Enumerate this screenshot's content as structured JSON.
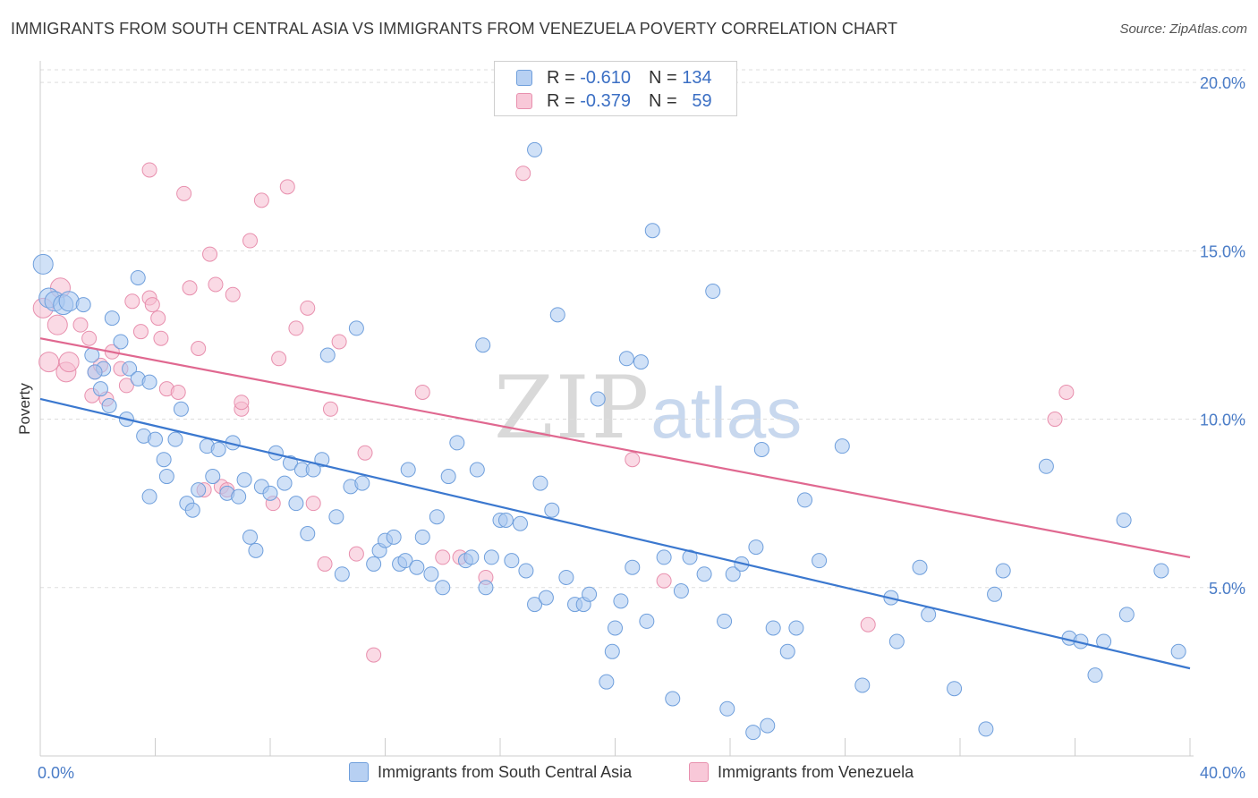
{
  "header": {
    "title": "IMMIGRANTS FROM SOUTH CENTRAL ASIA VS IMMIGRANTS FROM VENEZUELA POVERTY CORRELATION CHART",
    "source": "Source: ZipAtlas.com"
  },
  "watermark": {
    "zip": "ZIP",
    "atlas": "atlas"
  },
  "legend": {
    "rows": [
      {
        "r_label": "R =",
        "r_value": "-0.610",
        "n_label": "N =",
        "n_value": "134"
      },
      {
        "r_label": "R =",
        "r_value": "-0.379",
        "n_label": "N =",
        "n_value": "59"
      }
    ]
  },
  "colors": {
    "blue_fill": "#a9c8f0",
    "blue_stroke": "#6f9fdc",
    "blue_line": "#3b78cf",
    "pink_fill": "#f5bcd0",
    "pink_stroke": "#e890ae",
    "pink_line": "#e06890",
    "grid": "#dddddd"
  },
  "chart_data": {
    "type": "scatter",
    "title": "IMMIGRANTS FROM SOUTH CENTRAL ASIA VS IMMIGRANTS FROM VENEZUELA POVERTY CORRELATION CHART",
    "xlabel": "",
    "ylabel": "Poverty",
    "xlim": [
      0,
      40
    ],
    "ylim": [
      0,
      20.8
    ],
    "x_tick_labels": [
      "0.0%",
      "40.0%"
    ],
    "y_ticks": [
      5,
      10,
      15,
      20
    ],
    "y_tick_labels": [
      "5.0%",
      "10.0%",
      "15.0%",
      "20.0%"
    ],
    "grid": true,
    "legend_position": "top-center",
    "series": [
      {
        "name": "Immigrants from South Central Asia",
        "color": "blue",
        "trend": {
          "x": [
            0,
            40
          ],
          "y": [
            10.6,
            2.6
          ]
        },
        "points": [
          [
            0.1,
            14.6
          ],
          [
            0.3,
            13.6
          ],
          [
            0.5,
            13.5
          ],
          [
            0.8,
            13.4
          ],
          [
            1.0,
            13.5
          ],
          [
            1.5,
            13.4
          ],
          [
            1.8,
            11.9
          ],
          [
            2.1,
            10.9
          ],
          [
            2.2,
            11.5
          ],
          [
            1.9,
            11.4
          ],
          [
            2.5,
            13.0
          ],
          [
            2.8,
            12.3
          ],
          [
            3.1,
            11.5
          ],
          [
            2.4,
            10.4
          ],
          [
            3.0,
            10.0
          ],
          [
            3.4,
            11.2
          ],
          [
            3.8,
            11.1
          ],
          [
            3.4,
            14.2
          ],
          [
            3.6,
            9.5
          ],
          [
            4.0,
            9.4
          ],
          [
            4.3,
            8.8
          ],
          [
            4.4,
            8.3
          ],
          [
            3.8,
            7.7
          ],
          [
            4.7,
            9.4
          ],
          [
            4.9,
            10.3
          ],
          [
            5.1,
            7.5
          ],
          [
            5.3,
            7.3
          ],
          [
            5.5,
            7.9
          ],
          [
            5.8,
            9.2
          ],
          [
            6.0,
            8.3
          ],
          [
            6.2,
            9.1
          ],
          [
            6.5,
            7.8
          ],
          [
            6.7,
            9.3
          ],
          [
            6.9,
            7.7
          ],
          [
            7.1,
            8.2
          ],
          [
            7.3,
            6.5
          ],
          [
            7.5,
            6.1
          ],
          [
            7.7,
            8.0
          ],
          [
            8.0,
            7.8
          ],
          [
            8.2,
            9.0
          ],
          [
            8.5,
            8.1
          ],
          [
            8.7,
            8.7
          ],
          [
            8.9,
            7.5
          ],
          [
            9.1,
            8.5
          ],
          [
            9.3,
            6.6
          ],
          [
            9.5,
            8.5
          ],
          [
            9.8,
            8.8
          ],
          [
            10.0,
            11.9
          ],
          [
            10.3,
            7.1
          ],
          [
            10.5,
            5.4
          ],
          [
            10.8,
            8.0
          ],
          [
            11.0,
            12.7
          ],
          [
            11.2,
            8.1
          ],
          [
            11.6,
            5.7
          ],
          [
            11.8,
            6.1
          ],
          [
            12.0,
            6.4
          ],
          [
            12.3,
            6.5
          ],
          [
            12.5,
            5.7
          ],
          [
            12.8,
            8.5
          ],
          [
            12.7,
            5.8
          ],
          [
            13.1,
            5.6
          ],
          [
            13.3,
            6.5
          ],
          [
            13.6,
            5.4
          ],
          [
            13.8,
            7.1
          ],
          [
            14.0,
            5.0
          ],
          [
            14.2,
            8.3
          ],
          [
            14.5,
            9.3
          ],
          [
            14.8,
            5.8
          ],
          [
            15.0,
            5.9
          ],
          [
            15.2,
            8.5
          ],
          [
            15.4,
            12.2
          ],
          [
            15.5,
            5.0
          ],
          [
            15.7,
            5.9
          ],
          [
            16.0,
            7.0
          ],
          [
            16.2,
            7.0
          ],
          [
            16.4,
            5.8
          ],
          [
            16.7,
            6.9
          ],
          [
            16.9,
            5.5
          ],
          [
            17.2,
            4.5
          ],
          [
            17.4,
            8.1
          ],
          [
            17.6,
            4.7
          ],
          [
            17.2,
            18.0
          ],
          [
            17.8,
            7.3
          ],
          [
            18.0,
            13.1
          ],
          [
            18.3,
            5.3
          ],
          [
            18.6,
            4.5
          ],
          [
            18.9,
            4.5
          ],
          [
            19.1,
            4.8
          ],
          [
            19.4,
            10.6
          ],
          [
            19.7,
            2.2
          ],
          [
            19.9,
            3.1
          ],
          [
            20.0,
            3.8
          ],
          [
            20.2,
            4.6
          ],
          [
            20.4,
            11.8
          ],
          [
            20.6,
            5.6
          ],
          [
            20.9,
            11.7
          ],
          [
            21.1,
            4.0
          ],
          [
            21.3,
            15.6
          ],
          [
            21.7,
            5.9
          ],
          [
            22.0,
            1.7
          ],
          [
            22.3,
            4.9
          ],
          [
            22.6,
            5.9
          ],
          [
            23.1,
            5.4
          ],
          [
            23.4,
            13.8
          ],
          [
            23.8,
            4.0
          ],
          [
            23.9,
            1.4
          ],
          [
            24.1,
            5.4
          ],
          [
            24.4,
            5.7
          ],
          [
            24.8,
            0.7
          ],
          [
            24.9,
            6.2
          ],
          [
            25.1,
            9.1
          ],
          [
            25.3,
            0.9
          ],
          [
            25.5,
            3.8
          ],
          [
            26.0,
            3.1
          ],
          [
            26.3,
            3.8
          ],
          [
            26.6,
            7.6
          ],
          [
            27.1,
            5.8
          ],
          [
            27.9,
            9.2
          ],
          [
            28.6,
            2.1
          ],
          [
            29.6,
            4.7
          ],
          [
            29.8,
            3.4
          ],
          [
            30.6,
            5.6
          ],
          [
            30.9,
            4.2
          ],
          [
            31.8,
            2.0
          ],
          [
            32.9,
            0.8
          ],
          [
            33.2,
            4.8
          ],
          [
            33.5,
            5.5
          ],
          [
            35.0,
            8.6
          ],
          [
            35.8,
            3.5
          ],
          [
            36.2,
            3.4
          ],
          [
            36.7,
            2.4
          ],
          [
            37.0,
            3.4
          ],
          [
            37.7,
            7.0
          ],
          [
            37.8,
            4.2
          ],
          [
            39.0,
            5.5
          ],
          [
            39.6,
            3.1
          ]
        ]
      },
      {
        "name": "Immigrants from Venezuela",
        "color": "pink",
        "trend": {
          "x": [
            0,
            40
          ],
          "y": [
            12.4,
            5.9
          ]
        },
        "points": [
          [
            0.1,
            13.3
          ],
          [
            0.3,
            11.7
          ],
          [
            0.6,
            12.8
          ],
          [
            0.7,
            13.9
          ],
          [
            0.9,
            11.4
          ],
          [
            1.0,
            11.7
          ],
          [
            1.4,
            12.8
          ],
          [
            1.7,
            12.4
          ],
          [
            1.8,
            10.7
          ],
          [
            1.9,
            11.4
          ],
          [
            2.1,
            11.6
          ],
          [
            2.3,
            10.6
          ],
          [
            2.5,
            12.0
          ],
          [
            2.8,
            11.5
          ],
          [
            3.0,
            11.0
          ],
          [
            3.2,
            13.5
          ],
          [
            3.5,
            12.6
          ],
          [
            3.8,
            13.6
          ],
          [
            3.9,
            13.4
          ],
          [
            4.1,
            13.0
          ],
          [
            4.2,
            12.4
          ],
          [
            4.4,
            10.9
          ],
          [
            3.8,
            17.4
          ],
          [
            4.8,
            10.8
          ],
          [
            5.0,
            16.7
          ],
          [
            5.2,
            13.9
          ],
          [
            5.5,
            12.1
          ],
          [
            5.7,
            7.9
          ],
          [
            5.9,
            14.9
          ],
          [
            6.1,
            14.0
          ],
          [
            6.3,
            8.0
          ],
          [
            6.5,
            7.9
          ],
          [
            6.7,
            13.7
          ],
          [
            7.0,
            10.3
          ],
          [
            7.3,
            15.3
          ],
          [
            7.0,
            10.5
          ],
          [
            7.7,
            16.5
          ],
          [
            8.1,
            7.5
          ],
          [
            8.3,
            11.8
          ],
          [
            8.6,
            16.9
          ],
          [
            8.9,
            12.7
          ],
          [
            9.3,
            13.3
          ],
          [
            9.5,
            7.5
          ],
          [
            9.9,
            5.7
          ],
          [
            10.1,
            10.3
          ],
          [
            10.4,
            12.3
          ],
          [
            11.0,
            6.0
          ],
          [
            11.3,
            9.0
          ],
          [
            11.6,
            3.0
          ],
          [
            13.3,
            10.8
          ],
          [
            14.0,
            5.9
          ],
          [
            14.6,
            5.9
          ],
          [
            15.5,
            5.3
          ],
          [
            16.8,
            17.3
          ],
          [
            20.6,
            8.8
          ],
          [
            21.7,
            5.2
          ],
          [
            28.8,
            3.9
          ],
          [
            35.3,
            10.0
          ],
          [
            35.7,
            10.8
          ]
        ]
      }
    ]
  },
  "bottom_legend": {
    "items": [
      "Immigrants from South Central Asia",
      "Immigrants from Venezuela"
    ]
  }
}
